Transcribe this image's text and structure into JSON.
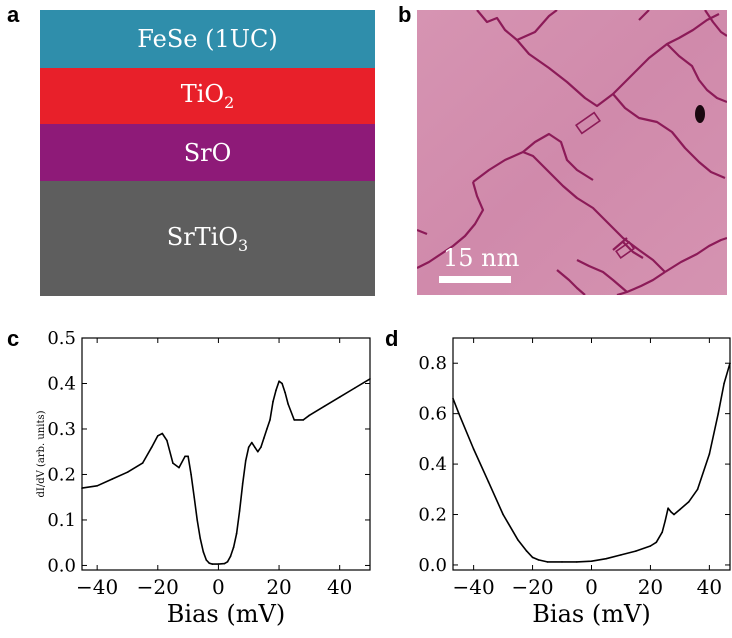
{
  "panels": {
    "a": "a",
    "b": "b",
    "c": "c",
    "d": "d"
  },
  "layers": [
    {
      "name": "FeSe (1UC)",
      "color": "#2f8eab"
    },
    {
      "name": "TiO",
      "sub": "2",
      "color": "#e8202a"
    },
    {
      "name": "SrO",
      "color": "#8e1a78"
    },
    {
      "name": "SrTiO",
      "sub": "3",
      "color": "#5e5e5e"
    }
  ],
  "stm_image": {
    "scale_label": "15 nm",
    "background_color": "#d38cac",
    "edge_color": "#8c1b58"
  },
  "chart_data": [
    {
      "type": "line",
      "panel": "c",
      "xlabel": "Bias (mV)",
      "ylabel": "dI/dV (arb. units)",
      "xlim": [
        -45,
        50
      ],
      "ylim": [
        -0.01,
        0.5
      ],
      "xticks": [
        -40,
        -20,
        0,
        20,
        40
      ],
      "xtick_labels": [
        "−40",
        "−20",
        "0",
        "20",
        "40"
      ],
      "yticks": [
        0.0,
        0.1,
        0.2,
        0.3,
        0.4,
        0.5
      ],
      "ytick_labels": [
        "0.0",
        "0.1",
        "0.2",
        "0.3",
        "0.4",
        "0.5"
      ],
      "series": [
        {
          "x": [
            -45,
            -40,
            -35,
            -30,
            -25,
            -22,
            -20,
            -18.5,
            -17,
            -15,
            -13,
            -11,
            -10,
            -9,
            -8,
            -7,
            -6,
            -5,
            -4,
            -3,
            -2,
            0,
            2,
            3,
            4,
            5,
            6,
            7,
            8,
            9,
            10,
            11,
            12,
            13,
            14,
            15,
            16,
            17,
            18,
            19,
            20,
            21,
            22,
            23,
            25,
            28,
            30,
            35,
            40,
            45,
            50
          ],
          "y": [
            0.17,
            0.175,
            0.19,
            0.205,
            0.225,
            0.26,
            0.285,
            0.29,
            0.275,
            0.225,
            0.215,
            0.24,
            0.24,
            0.2,
            0.15,
            0.1,
            0.06,
            0.03,
            0.012,
            0.005,
            0.003,
            0.003,
            0.004,
            0.008,
            0.02,
            0.04,
            0.07,
            0.12,
            0.18,
            0.23,
            0.26,
            0.27,
            0.26,
            0.25,
            0.26,
            0.28,
            0.3,
            0.32,
            0.36,
            0.385,
            0.405,
            0.4,
            0.38,
            0.355,
            0.32,
            0.32,
            0.33,
            0.35,
            0.37,
            0.39,
            0.41
          ]
        }
      ]
    },
    {
      "type": "line",
      "panel": "d",
      "xlabel": "Bias (mV)",
      "ylabel": "",
      "xlim": [
        -47,
        47
      ],
      "ylim": [
        -0.02,
        0.9
      ],
      "xticks": [
        -40,
        -20,
        0,
        20,
        40
      ],
      "xtick_labels": [
        "−40",
        "−20",
        "0",
        "20",
        "40"
      ],
      "yticks": [
        0.0,
        0.2,
        0.4,
        0.6,
        0.8
      ],
      "ytick_labels": [
        "0.0",
        "0.2",
        "0.4",
        "0.6",
        "0.8"
      ],
      "series": [
        {
          "x": [
            -47,
            -45,
            -40,
            -35,
            -30,
            -25,
            -22,
            -20,
            -18,
            -15,
            -10,
            -5,
            0,
            5,
            10,
            15,
            20,
            22,
            24,
            25,
            26,
            27,
            28,
            30,
            33,
            36,
            40,
            43,
            45,
            47
          ],
          "y": [
            0.66,
            0.6,
            0.46,
            0.33,
            0.2,
            0.1,
            0.055,
            0.03,
            0.02,
            0.012,
            0.012,
            0.012,
            0.015,
            0.025,
            0.04,
            0.055,
            0.075,
            0.09,
            0.13,
            0.175,
            0.225,
            0.21,
            0.2,
            0.22,
            0.25,
            0.3,
            0.44,
            0.6,
            0.72,
            0.8
          ]
        }
      ]
    }
  ]
}
